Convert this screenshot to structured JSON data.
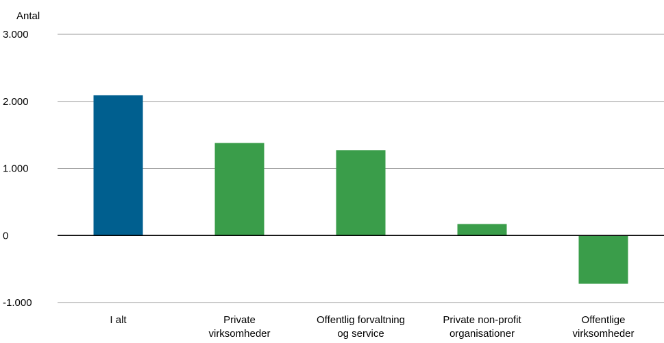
{
  "chart_data": {
    "type": "bar",
    "ylabel": "Antal",
    "categories": [
      [
        "I alt"
      ],
      [
        "Private",
        "virksomheder"
      ],
      [
        "Offentlig forvaltning",
        "og service"
      ],
      [
        "Private non-profit",
        "organisationer"
      ],
      [
        "Offentlige",
        "virksomheder"
      ]
    ],
    "values": [
      2090,
      1380,
      1270,
      170,
      -720
    ],
    "colors": [
      "#005f8f",
      "#3a9d4a",
      "#3a9d4a",
      "#3a9d4a",
      "#3a9d4a"
    ],
    "ylim": [
      -1000,
      3000
    ],
    "yticks": [
      -1000,
      0,
      1000,
      2000,
      3000
    ],
    "ytick_labels": [
      "-1.000",
      "0",
      "1.000",
      "2.000",
      "3.000"
    ],
    "grid": true,
    "legend": "none"
  }
}
